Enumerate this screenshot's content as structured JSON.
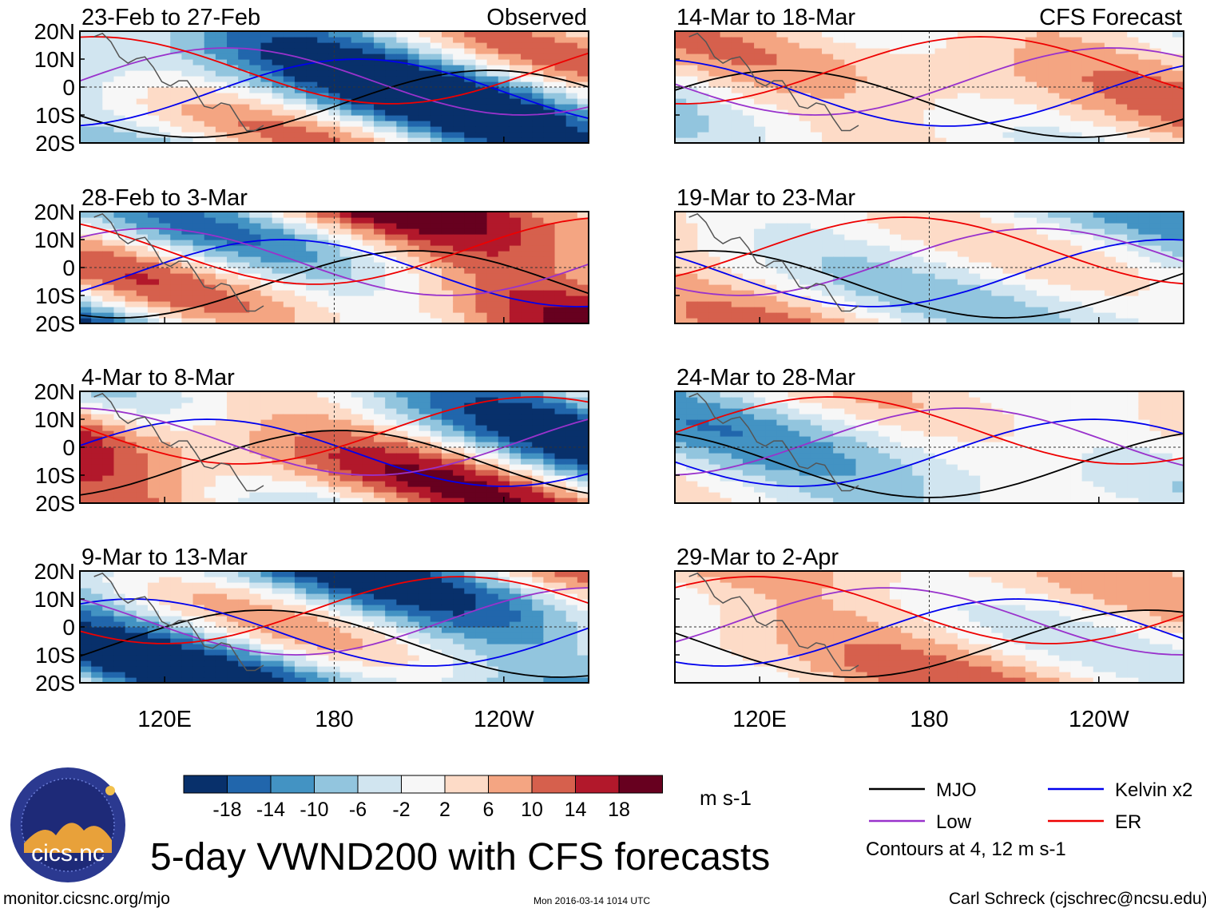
{
  "chart_data": {
    "type": "heatmap",
    "title": "5-day VWND200 with CFS forecasts",
    "variable": "VWND200",
    "units": "m s-1",
    "lat_ticks": [
      "20N",
      "10N",
      "0",
      "10S",
      "20S"
    ],
    "lat_values": [
      20,
      10,
      0,
      -10,
      -20
    ],
    "lon_ticks": [
      "120E",
      "180",
      "120W"
    ],
    "lon_values": [
      120,
      180,
      240
    ],
    "lon_range": [
      90,
      270
    ],
    "lat_range": [
      -20,
      20
    ],
    "columns": [
      {
        "label": "Observed",
        "panels": [
          "23-Feb to 27-Feb",
          "28-Feb to 3-Mar",
          "4-Mar to 8-Mar",
          "9-Mar to 13-Mar"
        ]
      },
      {
        "label": "CFS Forecast",
        "panels": [
          "14-Mar to 18-Mar",
          "19-Mar to 23-Mar",
          "24-Mar to 28-Mar",
          "29-Mar to 2-Apr"
        ]
      }
    ],
    "colorbar": {
      "levels": [
        "-18",
        "-14",
        "-10",
        "-6",
        "-2",
        "2",
        "6",
        "10",
        "14",
        "18"
      ],
      "colors": [
        "#08306b",
        "#2166ac",
        "#4393c3",
        "#92c5de",
        "#d1e5f0",
        "#f7f7f7",
        "#fddbc7",
        "#f4a582",
        "#d6604d",
        "#b2182b",
        "#67001f"
      ]
    },
    "contour_legend": [
      {
        "label": "MJO",
        "color": "#000000"
      },
      {
        "label": "Kelvin x2",
        "color": "#0000ee"
      },
      {
        "label": "Low",
        "color": "#9932cc"
      },
      {
        "label": "ER",
        "color": "#ee0000"
      }
    ],
    "contour_note": "Contours at 4, 12 m s-1"
  },
  "footer": {
    "left": "monitor.cicsnc.org/mjo",
    "center": "Mon 2016-03-14 1014 UTC",
    "right": "Carl Schreck (cjschrec@ncsu.edu)"
  },
  "logo": {
    "text": "cics.nc",
    "ring_text": "Cooperative Institute for Climate and Satellites"
  }
}
